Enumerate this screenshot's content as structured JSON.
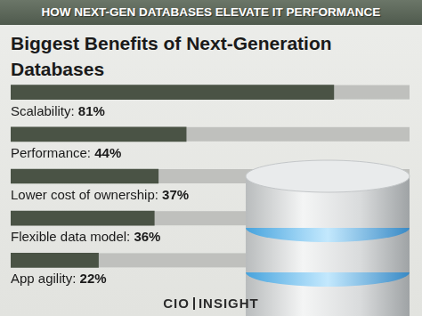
{
  "header": {
    "text": "HOW NEXT-GEN DATABASES ELEVATE IT PERFORMANCE"
  },
  "chart_data": {
    "type": "bar",
    "orientation": "horizontal",
    "title": "Biggest Benefits of Next-Generation Databases",
    "categories": [
      "Scalability:",
      "Performance:",
      "Lower cost of ownership:",
      "Flexible data model:",
      "App agility:"
    ],
    "values": [
      81,
      44,
      37,
      36,
      22
    ],
    "value_labels": [
      "81%",
      "44%",
      "37%",
      "36%",
      "22%"
    ],
    "data_labels": true,
    "color": "#4a5345",
    "xlim": [
      0,
      100
    ],
    "grid": false,
    "tick_labels": false
  },
  "footer": {
    "logo": [
      "CIO",
      "INSIGHT"
    ]
  }
}
